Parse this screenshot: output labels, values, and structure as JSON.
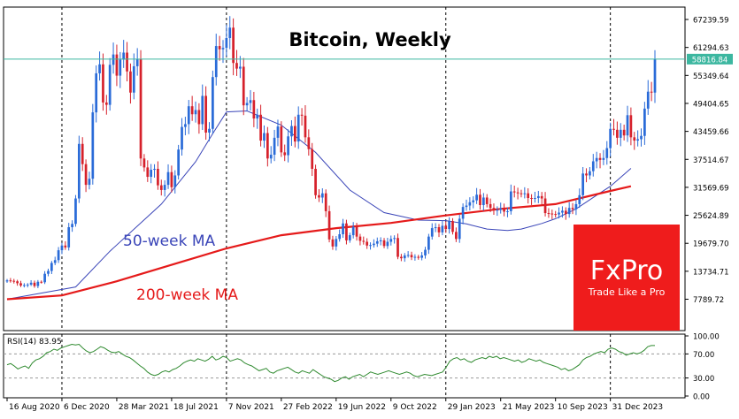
{
  "chart_data": {
    "type": "candlestick",
    "title": "Bitcoin, Weekly",
    "price_axis": {
      "ticks": [
        7789.72,
        13734.71,
        19679.7,
        25624.89,
        31569.69,
        37514.67,
        43459.66,
        49404.65,
        55349.64,
        61294.63,
        67239.59
      ],
      "tick_labels": [
        "7789.72",
        "13734.71",
        "19679.70",
        "25624.89",
        "31569.69",
        "37514.67",
        "43459.66",
        "49404.65",
        "55349.64",
        "61294.63",
        "67239.59"
      ],
      "ylim": [
        1500,
        69500
      ]
    },
    "x_axis": {
      "tick_labels": [
        "16 Aug 2020",
        "6 Dec 2020",
        "28 Mar 2021",
        "18 Jul 2021",
        "7 Nov 2021",
        "27 Feb 2022",
        "19 Jun 2022",
        "9 Oct 2022",
        "29 Jan 2023",
        "21 May 2023",
        "10 Sep 2023",
        "31 Dec 2023"
      ],
      "tick_weeks": [
        0,
        16,
        32,
        48,
        64,
        80,
        96,
        112,
        128,
        144,
        160,
        176
      ],
      "dotted_separators_weeks": [
        16,
        64,
        128,
        176
      ]
    },
    "current_price": {
      "value": 58816.84,
      "label": "58816.84",
      "line_color": "#3cb7a0",
      "box_color": "#3cb7a0"
    },
    "close_series": [
      11800,
      11700,
      11600,
      11200,
      10700,
      10800,
      10900,
      11300,
      10600,
      11500,
      11400,
      13200,
      13800,
      15500,
      16100,
      18200,
      19200,
      18800,
      23100,
      23800,
      29200,
      40800,
      36500,
      32100,
      33400,
      47500,
      55800,
      57700,
      49600,
      49100,
      57600,
      59800,
      55300,
      58700,
      60200,
      56200,
      51700,
      57300,
      58800,
      37700,
      35800,
      33800,
      35300,
      35500,
      32000,
      31000,
      32100,
      34800,
      31600,
      34100,
      39600,
      44400,
      45000,
      48800,
      47100,
      48000,
      45000,
      51000,
      43200,
      44000,
      55000,
      61600,
      60900,
      61200,
      63300,
      65500,
      58000,
      56800,
      57200,
      49000,
      49500,
      50100,
      46200,
      47000,
      41500,
      43100,
      37700,
      38500,
      42100,
      44500,
      39000,
      38400,
      42400,
      44600,
      41300,
      47000,
      46800,
      42200,
      39700,
      35500,
      29900,
      29400,
      30300,
      26500,
      20500,
      19000,
      20600,
      21600,
      23900,
      20300,
      21400,
      23200,
      21100,
      20200,
      20000,
      19200,
      19300,
      19600,
      20100,
      20300,
      19100,
      20000,
      20600,
      20800,
      16800,
      16500,
      17100,
      17200,
      16700,
      16800,
      16600,
      17100,
      18300,
      21100,
      22900,
      23100,
      22000,
      23400,
      22700,
      24400,
      22100,
      20600,
      24900,
      27400,
      27700,
      28400,
      28800,
      30000,
      27800,
      29400,
      28000,
      27200,
      26800,
      26800,
      27100,
      26400,
      26500,
      30700,
      30500,
      30300,
      30200,
      30300,
      29300,
      29200,
      29300,
      29700,
      29200,
      26100,
      26000,
      25900,
      25800,
      26200,
      26600,
      25900,
      27200,
      26900,
      28000,
      29900,
      34500,
      34100,
      35000,
      37100,
      37800,
      37400,
      37800,
      39900,
      44000,
      43800,
      42100,
      43800,
      42600,
      46900,
      42200,
      41500,
      41800,
      42500,
      48300,
      51900,
      51700,
      58816.84
    ],
    "series": [
      {
        "name": "50-week MA",
        "color": "#3a45b8",
        "x": [
          0,
          20,
          30,
          45,
          55,
          60,
          64,
          70,
          80,
          90,
          100,
          110,
          120,
          128,
          134,
          140,
          146,
          150,
          156,
          160,
          166,
          172,
          176,
          182
        ],
        "values": [
          7800,
          10400,
          18000,
          28000,
          37000,
          43000,
          47600,
          47800,
          44800,
          39000,
          31000,
          26200,
          24600,
          24500,
          23800,
          22700,
          22400,
          22700,
          23900,
          24900,
          27000,
          29900,
          31800,
          35600
        ]
      },
      {
        "name": "200-week MA",
        "color": "#e51a1a",
        "x": [
          0,
          16,
          32,
          48,
          64,
          80,
          96,
          112,
          128,
          144,
          160,
          176,
          182
        ],
        "values": [
          7800,
          8600,
          11600,
          15100,
          18600,
          21400,
          22900,
          24000,
          25600,
          27000,
          28000,
          30800,
          31800
        ]
      }
    ],
    "annotations": [
      {
        "text": "50-week MA",
        "color": "#3a45b8"
      },
      {
        "text": "200-week MA",
        "color": "#e51a1a"
      }
    ],
    "candle_colors": {
      "up": "#2a6bd8",
      "down": "#d6212b"
    },
    "rsi": {
      "label": "RSI(14) 83.95",
      "ticks": [
        100.0,
        70.0,
        30.0,
        0.0
      ],
      "tick_labels": [
        "100.00",
        "70.00",
        "30.00",
        "0.00"
      ],
      "ylim": [
        0,
        100
      ],
      "color": "#2f8a2f",
      "values": [
        52,
        54,
        50,
        45,
        48,
        50,
        46,
        55,
        60,
        62,
        66,
        72,
        74,
        78,
        76,
        80,
        82,
        84,
        86,
        85,
        86,
        80,
        75,
        72,
        74,
        78,
        82,
        80,
        76,
        73,
        72,
        74,
        70,
        66,
        64,
        60,
        55,
        50,
        46,
        40,
        36,
        34,
        36,
        40,
        42,
        40,
        44,
        46,
        50,
        55,
        58,
        60,
        58,
        62,
        60,
        58,
        61,
        66,
        60,
        62,
        66,
        64,
        58,
        60,
        62,
        60,
        55,
        52,
        50,
        46,
        42,
        44,
        46,
        40,
        38,
        42,
        44,
        46,
        48,
        44,
        40,
        38,
        42,
        40,
        38,
        44,
        40,
        36,
        32,
        30,
        28,
        24,
        26,
        30,
        32,
        28,
        32,
        34,
        36,
        32,
        36,
        40,
        38,
        36,
        38,
        40,
        42,
        40,
        38,
        36,
        38,
        40,
        38,
        34,
        32,
        34,
        36,
        35,
        34,
        36,
        38,
        40,
        48,
        58,
        62,
        64,
        60,
        62,
        58,
        56,
        60,
        62,
        64,
        62,
        66,
        64,
        66,
        62,
        64,
        62,
        60,
        58,
        60,
        56,
        58,
        62,
        60,
        58,
        60,
        56,
        54,
        52,
        50,
        48,
        44,
        46,
        42,
        44,
        48,
        52,
        60,
        64,
        66,
        70,
        72,
        74,
        72,
        78,
        80,
        78,
        74,
        72,
        68,
        70,
        72,
        70,
        72,
        76,
        82,
        84,
        83.95
      ]
    }
  },
  "logo": {
    "brand": "FxPro",
    "slogan": "Trade Like a Pro",
    "color": "#ef1c1c"
  }
}
